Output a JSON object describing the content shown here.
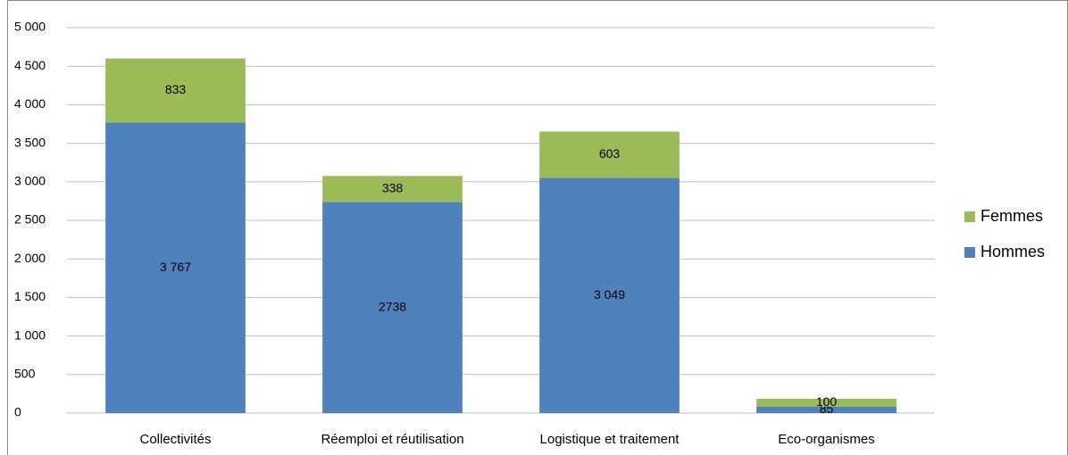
{
  "chart_data": {
    "type": "stacked_bar",
    "categories": [
      "Collectivités",
      "Réemploi et réutilisation",
      "Logistique et traitement",
      "Eco-organismes"
    ],
    "series": [
      {
        "name": "Hommes",
        "color": "#4f81bd",
        "values": [
          3767,
          2738,
          3049,
          85
        ],
        "value_labels": [
          "3 767",
          "2738",
          "3 049",
          "85"
        ]
      },
      {
        "name": "Femmes",
        "color": "#9bbb59",
        "values": [
          833,
          338,
          603,
          100
        ],
        "value_labels": [
          "833",
          "338",
          "603",
          "100"
        ]
      }
    ],
    "ylim": [
      0,
      5000
    ],
    "yticks": [
      0,
      500,
      {
        "value": 1000,
        "label": "1 000"
      },
      {
        "value": 1500,
        "label": "1 500"
      },
      {
        "value": 2000,
        "label": "2 000"
      },
      {
        "value": 2500,
        "label": "2 500"
      },
      {
        "value": 3000,
        "label": "3 000"
      },
      {
        "value": 3500,
        "label": "3 500"
      },
      {
        "value": 4000,
        "label": "4 000"
      },
      {
        "value": 4500,
        "label": "4 500"
      },
      {
        "value": 5000,
        "label": "5 000"
      }
    ],
    "grid": true,
    "legend": "right"
  }
}
